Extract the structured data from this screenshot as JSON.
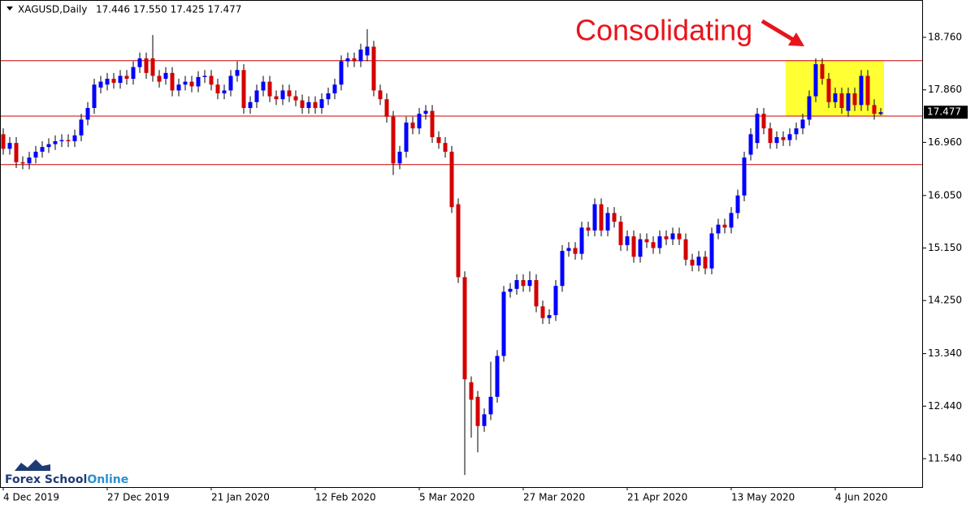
{
  "chart_data": {
    "type": "candlestick",
    "title": "XAGUSD,Daily",
    "ohlc_label": "17.446 17.550 17.425 17.477",
    "annotation": "Consolidating",
    "watermark": [
      "Forex School",
      "Online"
    ],
    "up_color": "#0000ff",
    "down_color": "#d40000",
    "wick_color": "#000000",
    "level_color": "#cc0000",
    "highlight_color": "#ffff33",
    "levels": [
      18.36,
      17.41,
      16.58
    ],
    "ylim": [
      11.053,
      19.4
    ],
    "yticks": [
      {
        "value": 18.76,
        "label": "18.760"
      },
      {
        "value": 17.86,
        "label": "17.860"
      },
      {
        "value": 16.96,
        "label": "16.960"
      },
      {
        "value": 16.05,
        "label": "16.050"
      },
      {
        "value": 15.15,
        "label": "15.150"
      },
      {
        "value": 14.25,
        "label": "14.250"
      },
      {
        "value": 13.34,
        "label": "13.340"
      },
      {
        "value": 12.44,
        "label": "12.440"
      },
      {
        "value": 11.54,
        "label": "11.540"
      }
    ],
    "categories": [
      "4 Dec 2019",
      null,
      null,
      null,
      null,
      null,
      null,
      null,
      null,
      null,
      null,
      null,
      null,
      null,
      null,
      null,
      "27 Dec 2019",
      null,
      null,
      null,
      null,
      null,
      null,
      null,
      null,
      null,
      null,
      null,
      null,
      null,
      null,
      null,
      "21 Jan 2020",
      null,
      null,
      null,
      null,
      null,
      null,
      null,
      null,
      null,
      null,
      null,
      null,
      null,
      null,
      null,
      "12 Feb 2020",
      null,
      null,
      null,
      null,
      null,
      null,
      null,
      null,
      null,
      null,
      null,
      null,
      null,
      null,
      null,
      "5 Mar 2020",
      null,
      null,
      null,
      null,
      null,
      null,
      null,
      null,
      null,
      null,
      null,
      null,
      null,
      null,
      null,
      "27 Mar 2020",
      null,
      null,
      null,
      null,
      null,
      null,
      null,
      null,
      null,
      null,
      null,
      null,
      null,
      null,
      null,
      "21 Apr 2020",
      null,
      null,
      null,
      null,
      null,
      null,
      null,
      null,
      null,
      null,
      null,
      null,
      null,
      null,
      null,
      "13 May 2020",
      null,
      null,
      null,
      null,
      null,
      null,
      null,
      null,
      null,
      null,
      null,
      null,
      null,
      null,
      null,
      "4 Jun 2020",
      null,
      null,
      null,
      null,
      null,
      null,
      null
    ],
    "open": [
      17.1,
      16.85,
      16.95,
      16.62,
      16.6,
      16.7,
      16.8,
      16.88,
      16.93,
      16.98,
      17.0,
      16.98,
      17.08,
      17.35,
      17.55,
      17.9,
      17.95,
      18.05,
      17.98,
      18.1,
      18.05,
      18.25,
      18.4,
      18.4,
      18.1,
      18.05,
      18.15,
      17.85,
      17.95,
      18.0,
      17.92,
      18.08,
      18.1,
      17.95,
      17.8,
      17.85,
      18.1,
      18.2,
      17.55,
      17.65,
      17.85,
      18.0,
      17.75,
      17.7,
      17.85,
      17.75,
      17.68,
      17.55,
      17.65,
      17.55,
      17.7,
      17.8,
      17.95,
      18.35,
      18.4,
      18.35,
      18.45,
      18.6,
      17.85,
      17.7,
      17.4,
      16.6,
      16.8,
      17.3,
      17.2,
      17.45,
      17.5,
      17.05,
      16.95,
      16.8,
      15.9,
      14.65,
      12.85,
      12.6,
      12.1,
      12.3,
      12.6,
      13.3,
      14.4,
      14.45,
      14.6,
      14.5,
      14.6,
      14.15,
      13.95,
      14.0,
      14.5,
      15.1,
      15.15,
      15.05,
      15.5,
      15.45,
      15.9,
      15.45,
      15.75,
      15.6,
      15.2,
      15.35,
      15.0,
      15.3,
      15.25,
      15.15,
      15.35,
      15.3,
      15.4,
      15.3,
      14.95,
      14.85,
      15.0,
      14.8,
      15.4,
      15.55,
      15.5,
      15.75,
      16.05,
      16.75,
      16.95,
      17.45,
      17.2,
      16.95,
      17.05,
      17.0,
      17.1,
      17.2,
      17.35,
      17.75,
      18.3,
      18.05,
      17.65,
      17.8,
      17.5,
      17.8,
      17.6,
      18.1,
      17.6,
      17.446
    ],
    "high": [
      17.2,
      17.05,
      17.05,
      16.72,
      16.8,
      16.9,
      16.98,
      17.03,
      17.08,
      17.1,
      17.1,
      17.18,
      17.45,
      17.65,
      18.05,
      18.1,
      18.15,
      18.15,
      18.2,
      18.2,
      18.35,
      18.5,
      18.5,
      18.8,
      18.2,
      18.25,
      18.25,
      18.05,
      18.1,
      18.1,
      18.18,
      18.2,
      18.2,
      18.05,
      17.95,
      18.2,
      18.35,
      18.3,
      17.75,
      17.95,
      18.1,
      18.1,
      17.85,
      17.95,
      17.95,
      17.85,
      17.78,
      17.75,
      17.75,
      17.8,
      17.9,
      18.05,
      18.45,
      18.5,
      18.5,
      18.65,
      18.9,
      18.7,
      17.95,
      17.8,
      17.5,
      16.9,
      17.4,
      17.4,
      17.55,
      17.6,
      17.6,
      17.15,
      17.05,
      16.9,
      16.0,
      14.75,
      12.95,
      12.7,
      12.4,
      13.2,
      13.4,
      14.5,
      14.55,
      14.7,
      14.7,
      14.75,
      14.7,
      14.25,
      14.1,
      14.6,
      15.2,
      15.25,
      15.25,
      15.6,
      15.6,
      16.0,
      16.0,
      15.85,
      15.85,
      15.7,
      15.45,
      15.45,
      15.4,
      15.4,
      15.35,
      15.45,
      15.45,
      15.5,
      15.5,
      15.4,
      15.05,
      15.1,
      15.1,
      15.5,
      15.65,
      15.65,
      15.85,
      16.15,
      16.8,
      17.2,
      17.55,
      17.55,
      17.3,
      17.15,
      17.15,
      17.2,
      17.3,
      17.45,
      17.85,
      18.4,
      18.4,
      18.15,
      17.9,
      17.9,
      17.9,
      17.9,
      18.2,
      18.2,
      17.7,
      17.55
    ],
    "low": [
      16.75,
      16.75,
      16.52,
      16.5,
      16.5,
      16.6,
      16.7,
      16.78,
      16.83,
      16.88,
      16.88,
      16.88,
      16.98,
      17.25,
      17.45,
      17.8,
      17.85,
      17.88,
      17.88,
      17.95,
      17.95,
      18.15,
      18.05,
      18.0,
      17.9,
      17.95,
      17.75,
      17.75,
      17.85,
      17.82,
      17.82,
      17.98,
      17.85,
      17.7,
      17.7,
      17.75,
      18.0,
      17.45,
      17.45,
      17.55,
      17.75,
      17.65,
      17.6,
      17.6,
      17.65,
      17.58,
      17.45,
      17.45,
      17.45,
      17.45,
      17.6,
      17.7,
      17.85,
      18.25,
      18.25,
      18.25,
      18.35,
      17.75,
      17.6,
      17.3,
      16.4,
      16.5,
      16.7,
      17.1,
      17.1,
      17.35,
      16.95,
      16.85,
      16.7,
      15.75,
      14.55,
      11.26,
      11.9,
      11.65,
      12.0,
      12.2,
      12.5,
      13.2,
      14.3,
      14.35,
      14.4,
      14.4,
      14.05,
      13.85,
      13.85,
      13.9,
      14.4,
      15.0,
      14.95,
      14.95,
      15.35,
      15.35,
      15.35,
      15.35,
      15.5,
      15.1,
      15.1,
      14.9,
      14.9,
      15.15,
      15.05,
      15.05,
      15.2,
      15.2,
      15.2,
      14.85,
      14.75,
      14.75,
      14.7,
      14.7,
      15.3,
      15.4,
      15.4,
      15.65,
      15.95,
      16.65,
      16.85,
      17.1,
      16.85,
      16.85,
      16.9,
      16.9,
      17.0,
      17.1,
      17.25,
      17.65,
      17.95,
      17.55,
      17.55,
      17.45,
      17.4,
      17.5,
      17.5,
      17.5,
      17.35,
      17.425
    ],
    "close": [
      16.85,
      16.95,
      16.62,
      16.6,
      16.7,
      16.8,
      16.88,
      16.93,
      16.98,
      17.0,
      16.98,
      17.08,
      17.35,
      17.55,
      17.95,
      18.0,
      18.05,
      17.98,
      18.1,
      18.05,
      18.25,
      18.4,
      18.15,
      18.1,
      18.0,
      18.15,
      17.85,
      17.95,
      18.0,
      17.92,
      18.08,
      18.1,
      17.95,
      17.8,
      17.85,
      18.1,
      18.2,
      17.55,
      17.65,
      17.85,
      18.0,
      17.75,
      17.7,
      17.85,
      17.75,
      17.68,
      17.55,
      17.65,
      17.55,
      17.7,
      17.8,
      17.95,
      18.35,
      18.4,
      18.35,
      18.55,
      18.6,
      17.85,
      17.7,
      17.4,
      16.6,
      16.8,
      17.3,
      17.2,
      17.45,
      17.5,
      17.05,
      16.95,
      16.8,
      15.85,
      14.65,
      12.9,
      12.55,
      12.1,
      12.3,
      12.6,
      13.3,
      14.4,
      14.45,
      14.6,
      14.5,
      14.6,
      14.15,
      13.95,
      14.0,
      14.5,
      15.1,
      15.15,
      15.05,
      15.5,
      15.45,
      15.9,
      15.45,
      15.75,
      15.6,
      15.2,
      15.35,
      15.0,
      15.3,
      15.25,
      15.15,
      15.35,
      15.3,
      15.4,
      15.3,
      14.95,
      14.85,
      15.0,
      14.8,
      15.4,
      15.55,
      15.5,
      15.75,
      16.05,
      16.7,
      17.1,
      17.45,
      17.2,
      16.95,
      17.05,
      17.0,
      17.1,
      17.2,
      17.35,
      17.75,
      18.3,
      18.05,
      17.65,
      17.8,
      17.55,
      17.8,
      17.6,
      18.1,
      17.6,
      17.45,
      17.477
    ]
  }
}
